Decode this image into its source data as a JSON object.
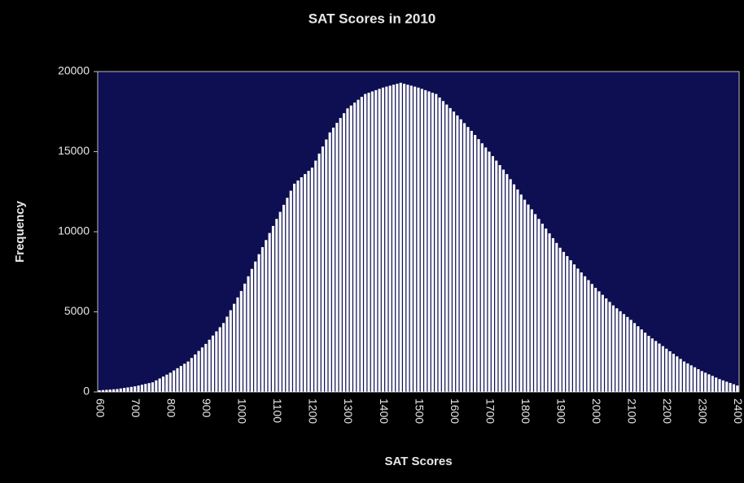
{
  "chart_data": {
    "type": "bar",
    "title": "SAT Scores in 2010",
    "x_label": "SAT Scores",
    "y_label": "Frequency",
    "categories": [
      "600",
      null,
      null,
      null,
      null,
      null,
      null,
      null,
      null,
      null,
      "700",
      null,
      null,
      null,
      null,
      null,
      null,
      null,
      null,
      null,
      "800",
      null,
      null,
      null,
      null,
      null,
      null,
      null,
      null,
      null,
      "900",
      null,
      null,
      null,
      null,
      null,
      null,
      null,
      null,
      null,
      "1000",
      null,
      null,
      null,
      null,
      null,
      null,
      null,
      null,
      null,
      "1100",
      null,
      null,
      null,
      null,
      null,
      null,
      null,
      null,
      null,
      "1200",
      null,
      null,
      null,
      null,
      null,
      null,
      null,
      null,
      null,
      "1300",
      null,
      null,
      null,
      null,
      null,
      null,
      null,
      null,
      null,
      "1400",
      null,
      null,
      null,
      null,
      null,
      null,
      null,
      null,
      null,
      "1500",
      null,
      null,
      null,
      null,
      null,
      null,
      null,
      null,
      null,
      "1600",
      null,
      null,
      null,
      null,
      null,
      null,
      null,
      null,
      null,
      "1700",
      null,
      null,
      null,
      null,
      null,
      null,
      null,
      null,
      null,
      "1800",
      null,
      null,
      null,
      null,
      null,
      null,
      null,
      null,
      null,
      "1900",
      null,
      null,
      null,
      null,
      null,
      null,
      null,
      null,
      null,
      "2000",
      null,
      null,
      null,
      null,
      null,
      null,
      null,
      null,
      null,
      "2100",
      null,
      null,
      null,
      null,
      null,
      null,
      null,
      null,
      null,
      "2200",
      null,
      null,
      null,
      null,
      null,
      null,
      null,
      null,
      null,
      "2300",
      null,
      null,
      null,
      null,
      null,
      null,
      null,
      null,
      null,
      "2400"
    ],
    "values": [
      100,
      116,
      132,
      148,
      164,
      180,
      214,
      248,
      282,
      316,
      350,
      400,
      450,
      500,
      550,
      600,
      720,
      840,
      960,
      1080,
      1200,
      1340,
      1480,
      1620,
      1760,
      1900,
      2120,
      2340,
      2560,
      2780,
      3000,
      3260,
      3520,
      3780,
      4040,
      4300,
      4700,
      5100,
      5500,
      5900,
      6300,
      6760,
      7220,
      7680,
      8140,
      8600,
      9040,
      9480,
      9920,
      10360,
      10800,
      11240,
      11680,
      12120,
      12560,
      13000,
      13200,
      13400,
      13600,
      13800,
      14000,
      14440,
      14880,
      15320,
      15760,
      16200,
      16500,
      16800,
      17100,
      17400,
      17700,
      17880,
      18060,
      18240,
      18420,
      18600,
      18680,
      18760,
      18840,
      18920,
      19000,
      19060,
      19120,
      19180,
      19240,
      19300,
      19240,
      19180,
      19120,
      19060,
      19000,
      18920,
      18840,
      18760,
      18680,
      18600,
      18380,
      18160,
      17940,
      17720,
      17500,
      17260,
      17020,
      16780,
      16540,
      16300,
      16040,
      15780,
      15520,
      15260,
      15000,
      14720,
      14440,
      14160,
      13880,
      13600,
      13280,
      12960,
      12640,
      12320,
      12000,
      11700,
      11400,
      11100,
      10800,
      10500,
      10200,
      9900,
      9600,
      9300,
      9000,
      8740,
      8480,
      8220,
      7960,
      7700,
      7460,
      7220,
      6980,
      6740,
      6500,
      6280,
      6060,
      5840,
      5620,
      5400,
      5220,
      5040,
      4860,
      4680,
      4500,
      4300,
      4100,
      3900,
      3700,
      3500,
      3340,
      3180,
      3020,
      2860,
      2700,
      2540,
      2380,
      2220,
      2060,
      1900,
      1780,
      1660,
      1540,
      1420,
      1300,
      1200,
      1100,
      1000,
      900,
      800,
      720,
      640,
      560,
      480,
      400
    ],
    "color": "#ffffff",
    "ylim": [
      0,
      20000
    ],
    "yticks": [
      0,
      5000,
      10000,
      15000,
      20000
    ],
    "grid": false
  }
}
